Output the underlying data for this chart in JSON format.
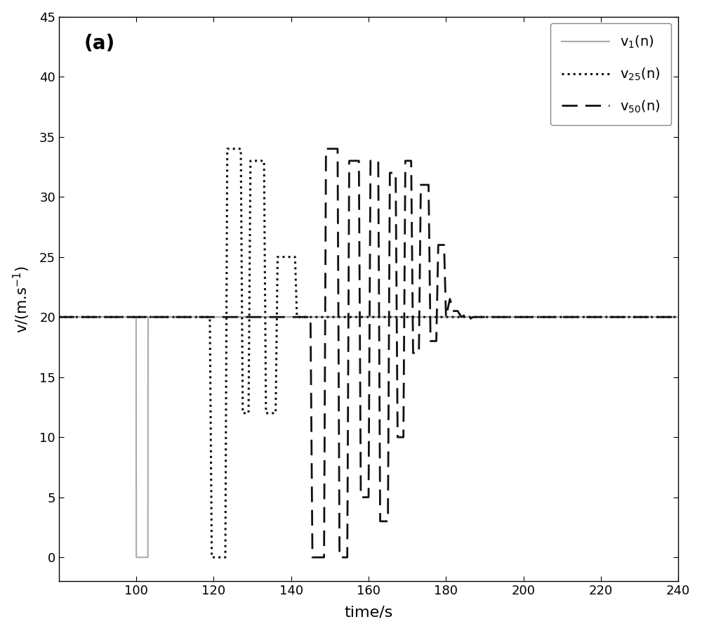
{
  "title_label": "(a)",
  "xlabel": "time/s",
  "ylabel": "v/(m.s$^{-1}$)",
  "xlim": [
    80,
    240
  ],
  "ylim": [
    -2,
    45
  ],
  "xticks": [
    100,
    120,
    140,
    160,
    180,
    200,
    220,
    240
  ],
  "yticks": [
    0,
    5,
    10,
    15,
    20,
    25,
    30,
    35,
    40,
    45
  ],
  "steady_speed": 20,
  "v1_color": "#aaaaaa",
  "v25_color": "#111111",
  "v50_color": "#111111",
  "background_color": "#ffffff",
  "legend_loc": "upper right",
  "v1_label": "v$_1$(n)",
  "v25_label": "v$_{25}$(n)",
  "v50_label": "v$_{50}$(n)"
}
